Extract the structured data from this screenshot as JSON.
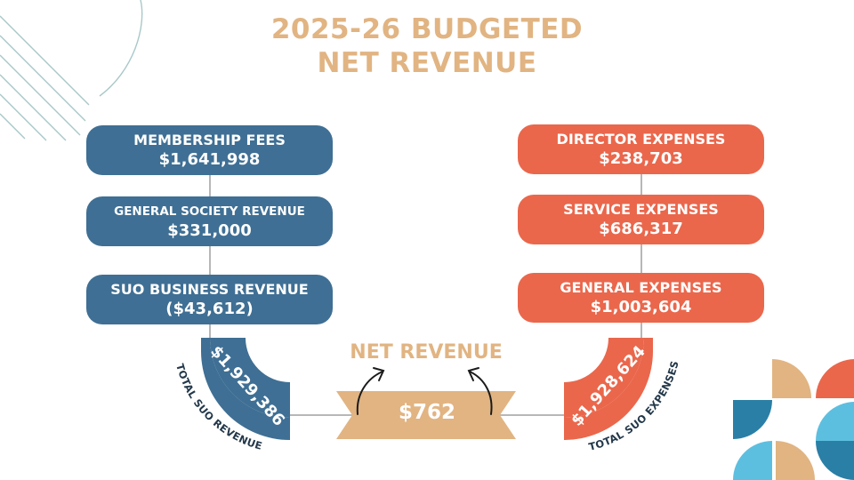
{
  "title_line1": "2025-26 BUDGETED",
  "title_line2": "NET REVENUE",
  "revenue_items": [
    {
      "label": "MEMBERSHIP FEES",
      "value": "$1,641,998"
    },
    {
      "label": "GENERAL SOCIETY REVENUE",
      "value": "$331,000"
    },
    {
      "label": "SUO BUSINESS REVENUE",
      "value": "($43,612)"
    }
  ],
  "expense_items": [
    {
      "label": "DIRECTOR EXPENSES",
      "value": "$238,703"
    },
    {
      "label": "SERVICE EXPENSES",
      "value": "$686,317"
    },
    {
      "label": "GENERAL EXPENSES",
      "value": "$1,003,604"
    }
  ],
  "total_revenue": {
    "value": "$1,929,386",
    "label": "TOTAL SUO REVENUE"
  },
  "total_expenses": {
    "value": "$1,928,624",
    "label": "TOTAL SUO EXPENSES"
  },
  "net_revenue": {
    "label": "NET REVENUE",
    "value": "$762"
  },
  "colors": {
    "revenue": "#3f6f94",
    "expenses": "#ea674c",
    "accent": "#e1b482",
    "teal_light": "#5dbfe0",
    "teal_dark": "#2a7fa6",
    "connector": "#b7b7b7"
  }
}
